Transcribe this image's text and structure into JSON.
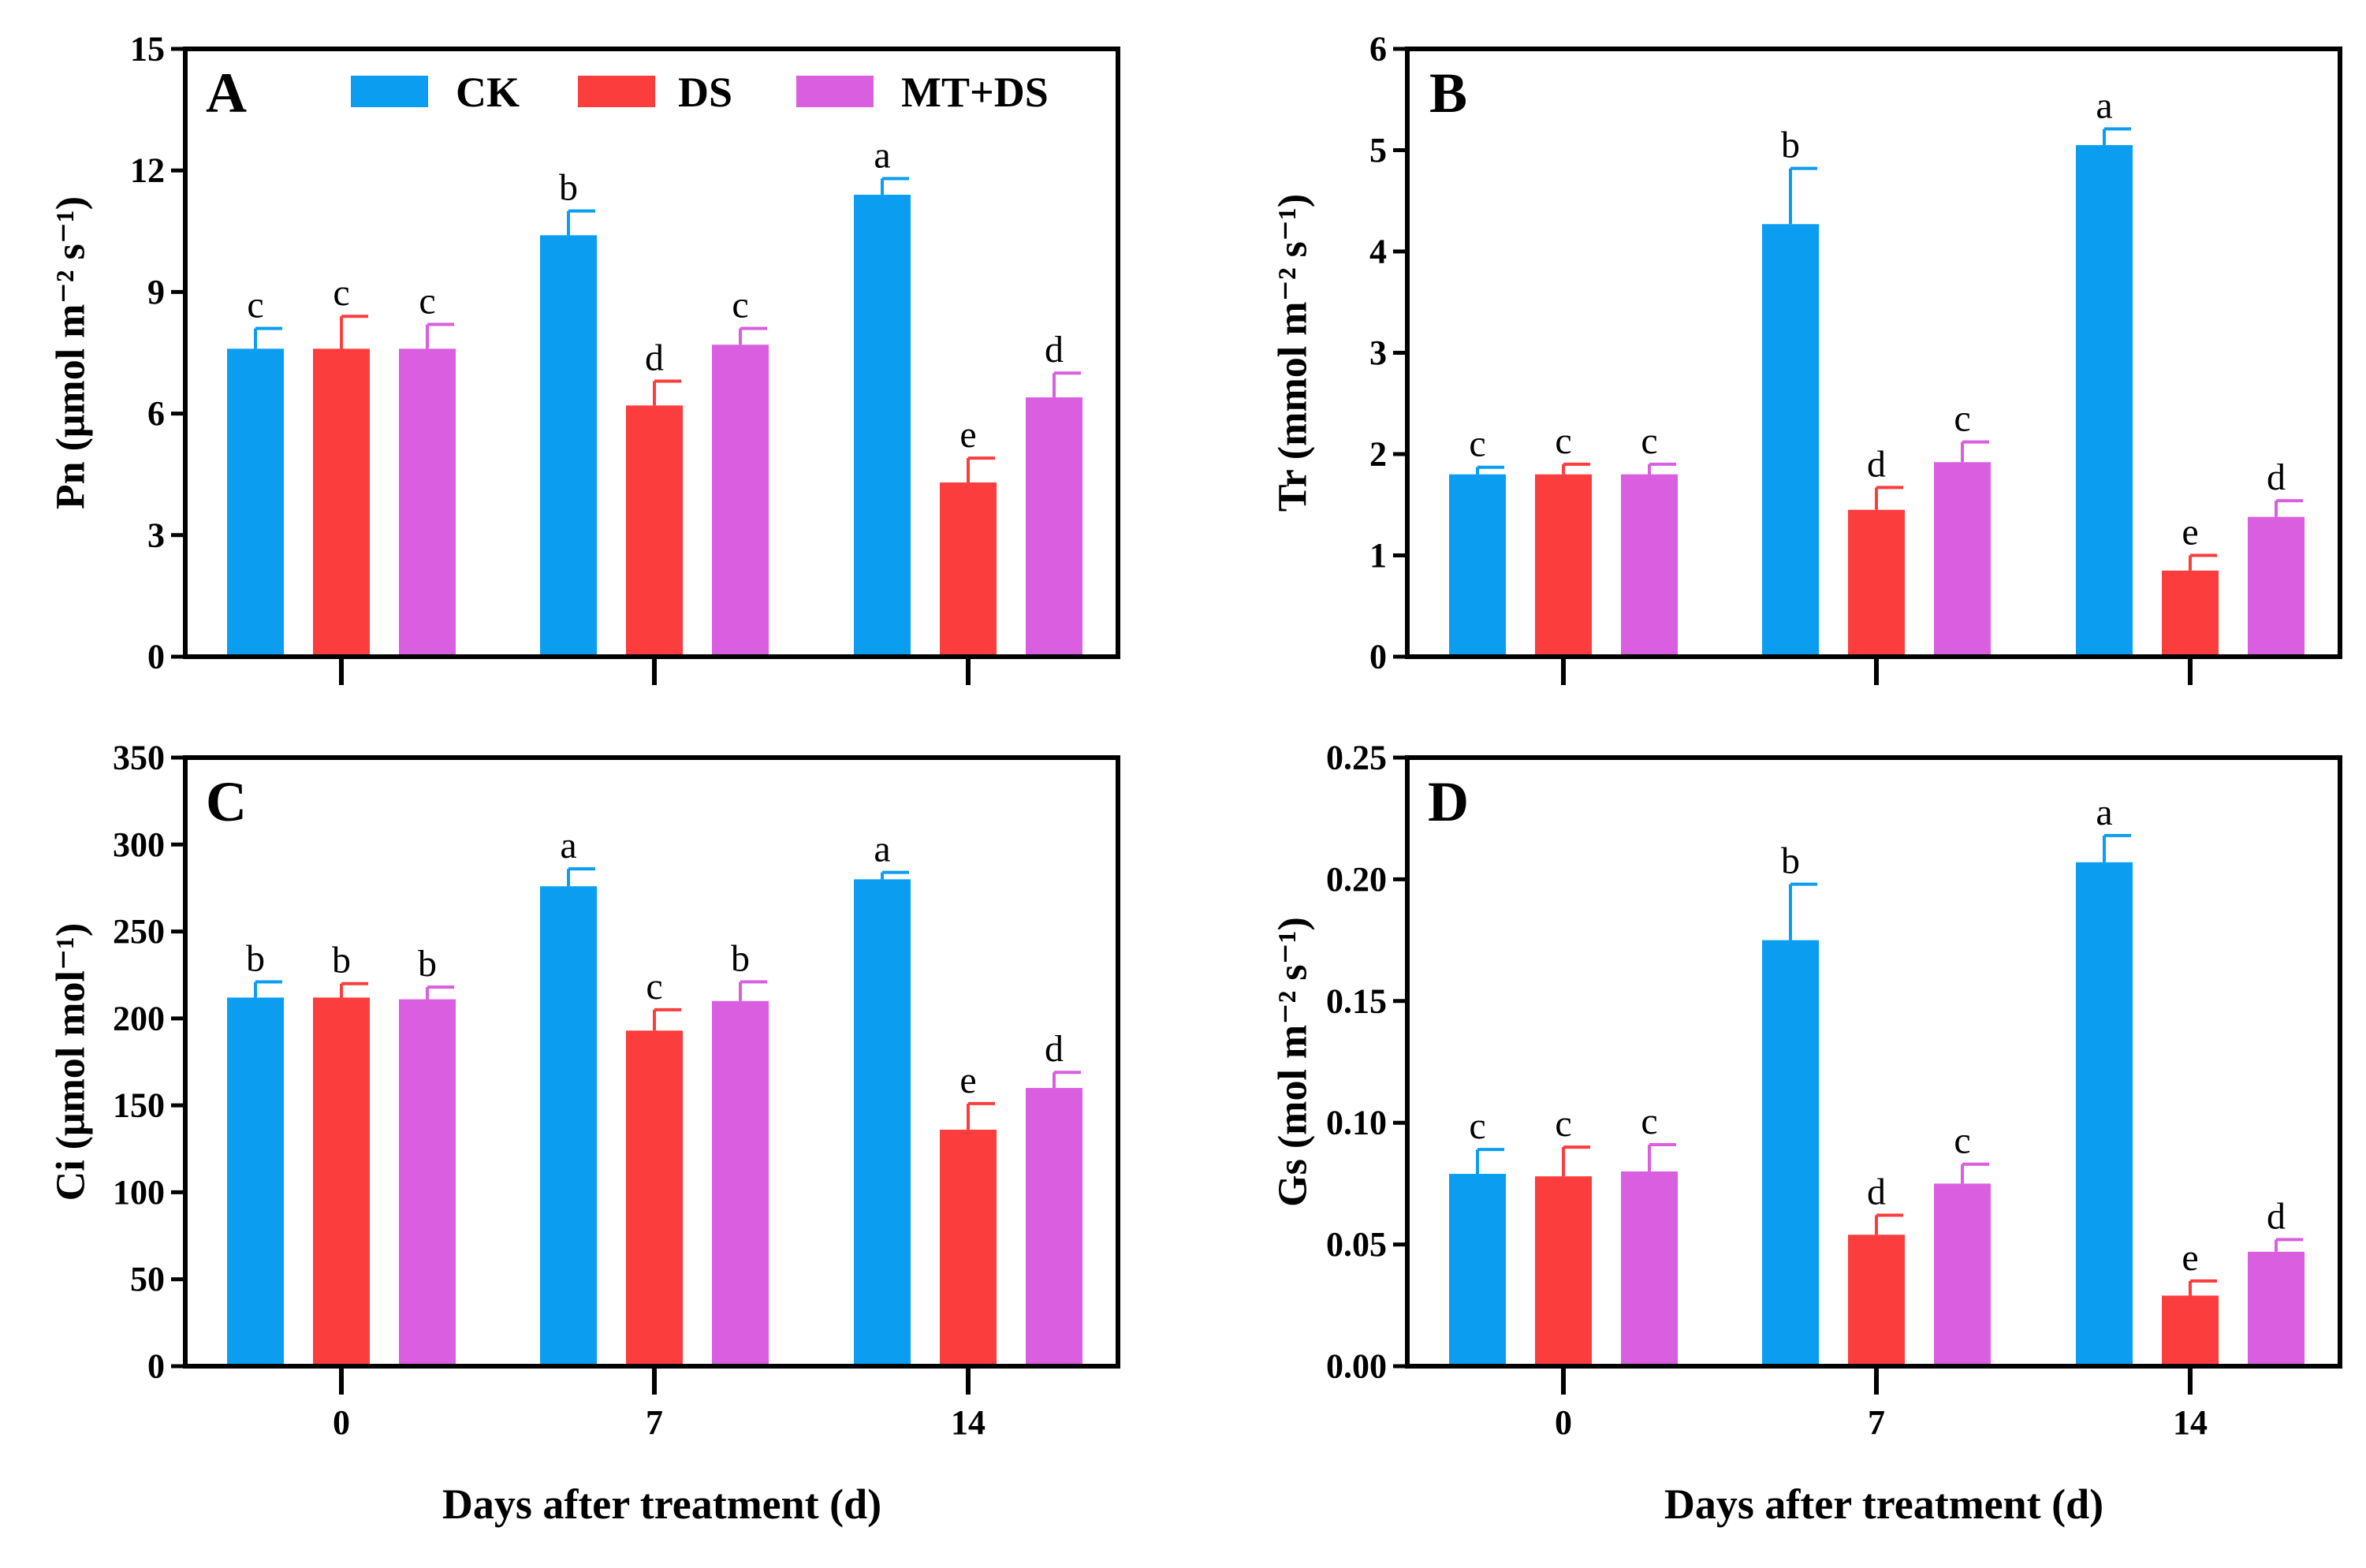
{
  "colors": {
    "CK": "#0a9df0",
    "DS": "#fc3d3d",
    "MT+DS": "#d95ee0"
  },
  "legend": [
    "CK",
    "DS",
    "MT+DS"
  ],
  "x_axis_title": "Days after treatment (d)",
  "chart_data": [
    {
      "type": "bar",
      "panel": "A",
      "ylabel": "Pn (μmol m⁻² s⁻¹)",
      "ylim": [
        0,
        15
      ],
      "yticks": [
        "0",
        "3",
        "6",
        "9",
        "12",
        "15"
      ],
      "categories": [
        "0",
        "7",
        "14"
      ],
      "series": [
        {
          "name": "CK",
          "values": [
            7.6,
            10.4,
            11.4
          ],
          "errors": [
            0.5,
            0.6,
            0.4
          ],
          "letters": [
            "c",
            "b",
            "a"
          ]
        },
        {
          "name": "DS",
          "values": [
            7.6,
            6.2,
            4.3
          ],
          "errors": [
            0.8,
            0.6,
            0.6
          ],
          "letters": [
            "c",
            "d",
            "e"
          ]
        },
        {
          "name": "MT+DS",
          "values": [
            7.6,
            7.7,
            6.4
          ],
          "errors": [
            0.6,
            0.4,
            0.6
          ],
          "letters": [
            "c",
            "c",
            "d"
          ]
        }
      ]
    },
    {
      "type": "bar",
      "panel": "B",
      "ylabel": "Tr (mmol m⁻² s⁻¹)",
      "ylim": [
        0,
        6
      ],
      "yticks": [
        "0",
        "1",
        "2",
        "3",
        "4",
        "5",
        "6"
      ],
      "categories": [
        "0",
        "7",
        "14"
      ],
      "series": [
        {
          "name": "CK",
          "values": [
            1.8,
            4.27,
            5.05
          ],
          "errors": [
            0.07,
            0.55,
            0.16
          ],
          "letters": [
            "c",
            "b",
            "a"
          ]
        },
        {
          "name": "DS",
          "values": [
            1.8,
            1.45,
            0.85
          ],
          "errors": [
            0.1,
            0.22,
            0.15
          ],
          "letters": [
            "c",
            "d",
            "e"
          ]
        },
        {
          "name": "MT+DS",
          "values": [
            1.8,
            1.92,
            1.38
          ],
          "errors": [
            0.1,
            0.2,
            0.16
          ],
          "letters": [
            "c",
            "c",
            "d"
          ]
        }
      ]
    },
    {
      "type": "bar",
      "panel": "C",
      "ylabel": "Ci (μmol mol⁻¹)",
      "ylim": [
        0,
        350
      ],
      "yticks": [
        "0",
        "50",
        "100",
        "150",
        "200",
        "250",
        "300",
        "350"
      ],
      "categories": [
        "0",
        "7",
        "14"
      ],
      "series": [
        {
          "name": "CK",
          "values": [
            212,
            276,
            280
          ],
          "errors": [
            9,
            10,
            4
          ],
          "letters": [
            "b",
            "a",
            "a"
          ]
        },
        {
          "name": "DS",
          "values": [
            212,
            193,
            136
          ],
          "errors": [
            8,
            12,
            15
          ],
          "letters": [
            "b",
            "c",
            "e"
          ]
        },
        {
          "name": "MT+DS",
          "values": [
            211,
            210,
            160
          ],
          "errors": [
            7,
            11,
            9
          ],
          "letters": [
            "b",
            "b",
            "d"
          ]
        }
      ]
    },
    {
      "type": "bar",
      "panel": "D",
      "ylabel": "Gs (mol m⁻² s⁻¹)",
      "ylim": [
        0,
        0.25
      ],
      "yticks": [
        "0.00",
        "0.05",
        "0.10",
        "0.15",
        "0.20",
        "0.25"
      ],
      "categories": [
        "0",
        "7",
        "14"
      ],
      "series": [
        {
          "name": "CK",
          "values": [
            0.079,
            0.175,
            0.207
          ],
          "errors": [
            0.01,
            0.023,
            0.011
          ],
          "letters": [
            "c",
            "b",
            "a"
          ]
        },
        {
          "name": "DS",
          "values": [
            0.078,
            0.054,
            0.029
          ],
          "errors": [
            0.012,
            0.008,
            0.006
          ],
          "letters": [
            "c",
            "d",
            "e"
          ]
        },
        {
          "name": "MT+DS",
          "values": [
            0.08,
            0.075,
            0.047
          ],
          "errors": [
            0.011,
            0.008,
            0.005
          ],
          "letters": [
            "c",
            "c",
            "d"
          ]
        }
      ]
    }
  ]
}
